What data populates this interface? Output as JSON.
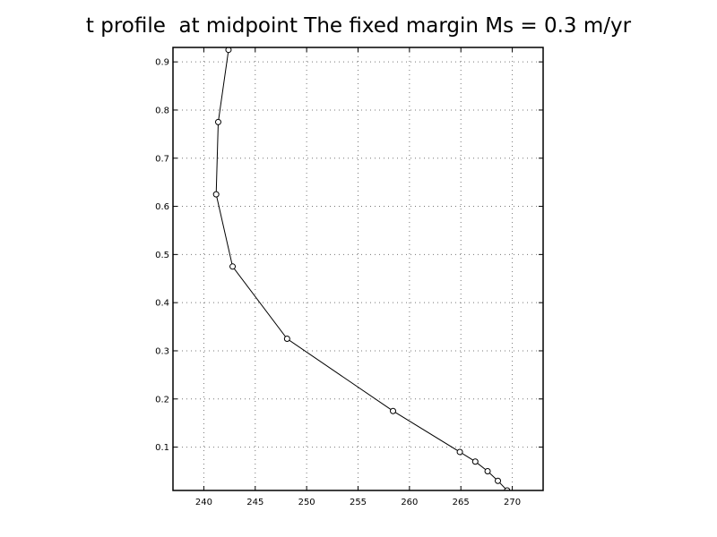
{
  "chart_data": {
    "type": "line",
    "title": "t profile  at midpoint The fixed margin Ms = 0.3 m/yr",
    "xlabel": "",
    "ylabel": "",
    "xlim": [
      237,
      273
    ],
    "ylim": [
      0.01,
      0.93
    ],
    "x_ticks": [
      240,
      245,
      250,
      255,
      260,
      265,
      270
    ],
    "y_ticks": [
      0.1,
      0.2,
      0.3,
      0.4,
      0.5,
      0.6,
      0.7,
      0.8,
      0.9
    ],
    "grid": true,
    "legend": "none",
    "series": [
      {
        "x": [
          269.5,
          268.6,
          267.6,
          266.4,
          264.9,
          258.4,
          248.1,
          242.8,
          241.2,
          241.4,
          242.4
        ],
        "y": [
          0.01,
          0.03,
          0.05,
          0.07,
          0.09,
          0.175,
          0.325,
          0.475,
          0.625,
          0.775,
          0.925
        ]
      }
    ]
  }
}
